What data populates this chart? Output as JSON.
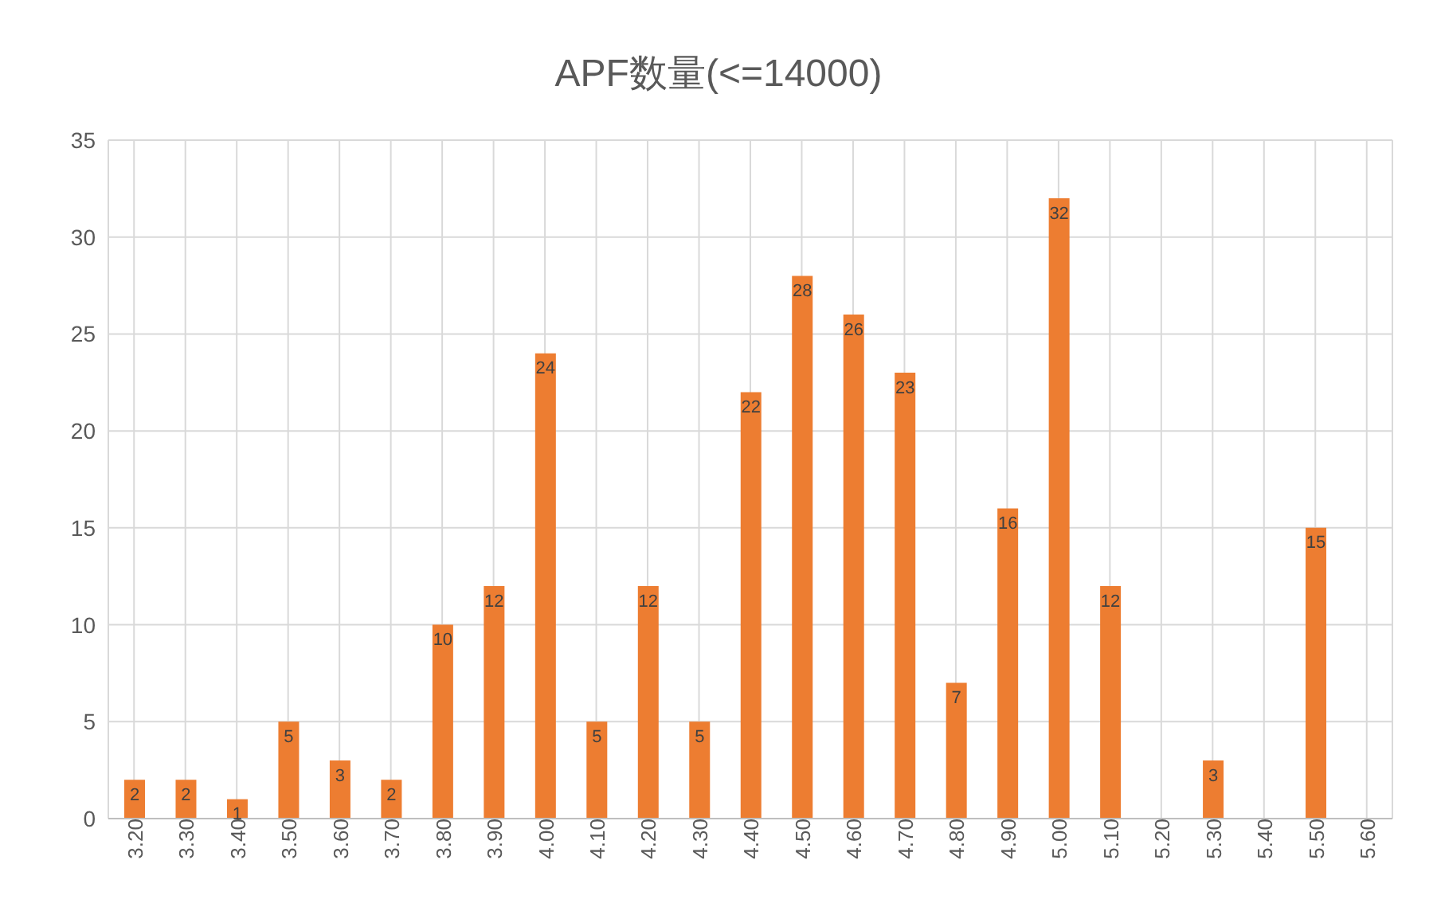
{
  "chart_data": {
    "type": "bar",
    "title": "APF数量(<=14000)",
    "categories": [
      "3.20",
      "3.30",
      "3.40",
      "3.50",
      "3.60",
      "3.70",
      "3.80",
      "3.90",
      "4.00",
      "4.10",
      "4.20",
      "4.30",
      "4.40",
      "4.50",
      "4.60",
      "4.70",
      "4.80",
      "4.90",
      "5.00",
      "5.10",
      "5.20",
      "5.30",
      "5.40",
      "5.50",
      "5.60"
    ],
    "values": [
      2,
      2,
      1,
      5,
      3,
      2,
      10,
      12,
      24,
      5,
      12,
      5,
      22,
      28,
      26,
      23,
      7,
      16,
      32,
      12,
      null,
      3,
      null,
      15,
      null
    ],
    "color": "#ed7d31",
    "ylim": [
      0,
      35
    ],
    "yticks": [
      0,
      5,
      10,
      15,
      20,
      25,
      30,
      35
    ],
    "grid": true,
    "data_labels": true
  }
}
